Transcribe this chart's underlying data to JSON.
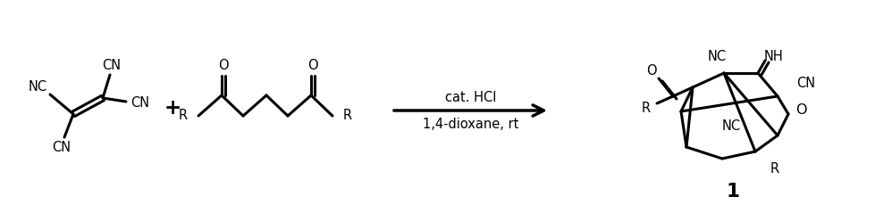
{
  "bg_color": "#ffffff",
  "line_color": "#000000",
  "line_width": 2.2,
  "font_size": 10.5,
  "arrow_label_top": "cat. HCl",
  "arrow_label_bottom": "1,4-dioxane, rt",
  "compound_number": "1",
  "figsize": [
    9.98,
    2.48
  ],
  "dpi": 100
}
